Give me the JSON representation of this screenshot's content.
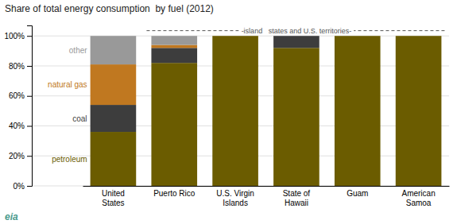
{
  "chart_data": {
    "type": "bar",
    "stacked": true,
    "title": "Share of total energy consumption  by fuel (2012)",
    "annotations": [
      "-island   states and U.S. territories-",
      "eia"
    ],
    "categories": [
      "United\nStates",
      "Puerto Rico",
      "U.S. Virgin\nIslands",
      "State of\nHawaii",
      "Guam",
      "American\nSamoa"
    ],
    "series": [
      {
        "name": "petroleum",
        "color": "#6b5c00",
        "values": [
          36,
          82,
          100,
          92,
          100,
          100
        ]
      },
      {
        "name": "coal",
        "color": "#3d3d3d",
        "values": [
          18,
          10,
          0,
          8,
          0,
          0
        ]
      },
      {
        "name": "natural gas",
        "color": "#c07820",
        "values": [
          27,
          2,
          0,
          0,
          0,
          0
        ]
      },
      {
        "name": "other",
        "color": "#999999",
        "values": [
          19,
          6,
          0,
          0,
          0,
          0
        ]
      }
    ],
    "ylim": [
      0,
      107
    ],
    "yticks": [
      {
        "value": 0,
        "label": "0%"
      },
      {
        "value": 20,
        "label": "20%"
      },
      {
        "value": 40,
        "label": "40%"
      },
      {
        "value": 60,
        "label": "60%"
      },
      {
        "value": 80,
        "label": "80%"
      },
      {
        "value": 100,
        "label": "100%"
      }
    ],
    "grid": true
  }
}
